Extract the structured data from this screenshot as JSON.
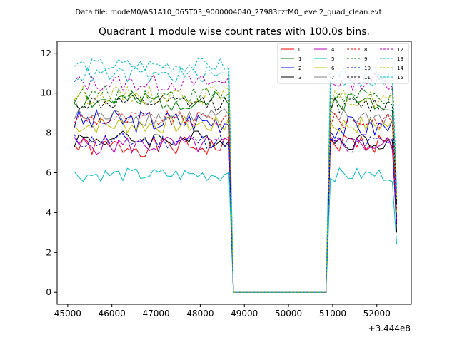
{
  "header": {
    "data_file": "Data file: modeM0/AS1A10_065T03_9000004040_27983cztM0_level2_quad_clean.evt"
  },
  "chart_data": {
    "type": "line",
    "title": "Quadrant 1 module wise count rates with 100.0s bins.",
    "xlabel": "",
    "ylabel": "",
    "x_offset_label": "+3.444e8",
    "xlim": [
      44760,
      52780
    ],
    "ylim": [
      -0.6,
      12.6
    ],
    "x_ticks": [
      45000,
      46000,
      47000,
      48000,
      49000,
      50000,
      51000,
      52000
    ],
    "x_tick_labels": [
      "45000",
      "46000",
      "47000",
      "48000",
      "49000",
      "50000",
      "51000",
      "52000"
    ],
    "y_ticks": [
      0,
      2,
      4,
      6,
      8,
      10,
      12
    ],
    "y_tick_labels": [
      "0",
      "2",
      "4",
      "6",
      "8",
      "10",
      "12"
    ],
    "legend_position": "top-right",
    "segments": [
      {
        "start": 45150,
        "end": 48550
      },
      {
        "start": 50950,
        "end": 52350
      }
    ],
    "drop": {
      "tail1": 48650,
      "zero_start": 48750,
      "zero_end": 50850,
      "tail2": 52450
    },
    "series": [
      {
        "name": "0",
        "color": "#ff0000",
        "dash": false,
        "level": 7.3,
        "tail": 7.6,
        "tail2": 3.5,
        "amp": 0.5,
        "seed": 1,
        "level2": 7.5
      },
      {
        "name": "1",
        "color": "#008000",
        "dash": false,
        "level": 9.6,
        "tail": 9.4,
        "tail2": 4.5,
        "amp": 0.5,
        "seed": 2,
        "level2": 9.6
      },
      {
        "name": "2",
        "color": "#0000ff",
        "dash": false,
        "level": 8.6,
        "tail": 8.4,
        "tail2": 3.8,
        "amp": 0.6,
        "seed": 3,
        "level2": 8.3
      },
      {
        "name": "3",
        "color": "#000000",
        "dash": false,
        "level": 7.7,
        "tail": 7.6,
        "tail2": 3.0,
        "amp": 0.45,
        "seed": 4,
        "level2": 7.6
      },
      {
        "name": "4",
        "color": "#bf00bf",
        "dash": false,
        "level": 7.4,
        "tail": 7.8,
        "tail2": 3.6,
        "amp": 0.5,
        "seed": 5,
        "level2": 7.4
      },
      {
        "name": "5",
        "color": "#00bfbf",
        "dash": false,
        "level": 5.9,
        "tail": 6.0,
        "tail2": 2.4,
        "amp": 0.35,
        "seed": 6,
        "level2": 5.9
      },
      {
        "name": "6",
        "color": "#bfbf00",
        "dash": false,
        "level": 8.4,
        "tail": 8.8,
        "tail2": 4.0,
        "amp": 0.45,
        "seed": 7,
        "level2": 8.4
      },
      {
        "name": "7",
        "color": "#808080",
        "dash": false,
        "level": 8.8,
        "tail": 8.9,
        "tail2": 4.1,
        "amp": 0.45,
        "seed": 8,
        "level2": 8.8
      },
      {
        "name": "8",
        "color": "#ff0000",
        "dash": true,
        "level": 8.7,
        "tail": 8.9,
        "tail2": 4.2,
        "amp": 0.4,
        "seed": 9,
        "level2": 8.6
      },
      {
        "name": "9",
        "color": "#008000",
        "dash": true,
        "level": 9.9,
        "tail": 10.0,
        "tail2": 4.6,
        "amp": 0.45,
        "seed": 10,
        "level2": 9.8
      },
      {
        "name": "10",
        "color": "#0000ff",
        "dash": true,
        "level": 7.6,
        "tail": 7.5,
        "tail2": 3.4,
        "amp": 0.4,
        "seed": 11,
        "level2": 7.5
      },
      {
        "name": "11",
        "color": "#000000",
        "dash": true,
        "level": 9.5,
        "tail": 9.6,
        "tail2": 4.4,
        "amp": 0.4,
        "seed": 12,
        "level2": 9.4
      },
      {
        "name": "12",
        "color": "#bf00bf",
        "dash": true,
        "level": 10.5,
        "tail": 10.8,
        "tail2": 5.0,
        "amp": 0.45,
        "seed": 13,
        "level2": 10.6
      },
      {
        "name": "13",
        "color": "#00bfbf",
        "dash": true,
        "level": 11.4,
        "tail": 11.3,
        "tail2": 5.2,
        "amp": 0.35,
        "seed": 14,
        "level2": 11.0
      },
      {
        "name": "14",
        "color": "#bfbf00",
        "dash": true,
        "level": 9.9,
        "tail": 10.2,
        "tail2": 4.7,
        "amp": 0.45,
        "seed": 15,
        "level2": 9.7
      },
      {
        "name": "15",
        "color": "#00bfbf",
        "dash": true,
        "level": 10.9,
        "tail": 11.0,
        "tail2": 5.1,
        "amp": 0.4,
        "seed": 16,
        "level2": 10.7
      }
    ]
  }
}
